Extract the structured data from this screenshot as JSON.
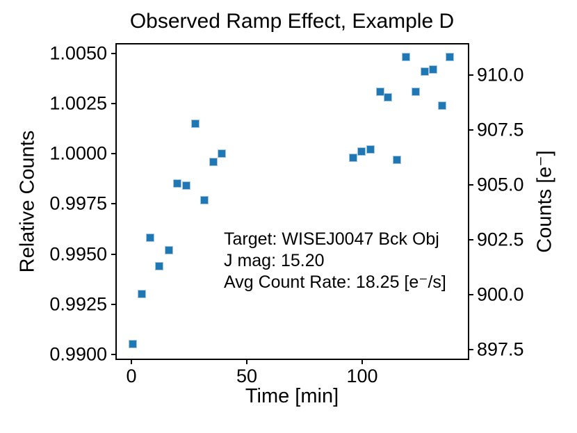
{
  "title": "Observed Ramp Effect, Example D",
  "annotation": {
    "lines": [
      "Target: WISEJ0047 Bck Obj",
      "J mag: 15.20",
      "Avg Count Rate: 18.25 [e⁻/s]"
    ]
  },
  "chart_data": {
    "type": "scatter",
    "title": "Observed Ramp Effect, Example D",
    "xlabel": "Time [min]",
    "ylabel_left": "Relative Counts",
    "ylabel_right": "Counts [e⁻]",
    "x_ticks": [
      "0",
      "50",
      "100"
    ],
    "y_ticks_left": [
      "1.0050",
      "1.0025",
      "1.0000",
      "0.9975",
      "0.9950",
      "0.9925",
      "0.9900"
    ],
    "y_ticks_right": [
      "910.0",
      "907.5",
      "905.0",
      "902.5",
      "900.0",
      "897.5"
    ],
    "xlim": [
      -6.3,
      145.8
    ],
    "ylim_left": [
      0.9898,
      1.00545
    ],
    "ylim_right": [
      897.1,
      911.4
    ],
    "grid": false,
    "legend": "none",
    "marker": "square",
    "marker_color": "#1f77b4",
    "marker_edge_color": "#a3c7e3",
    "series_name": "Relative counts vs time",
    "points_t_min_rel": [
      [
        0.6,
        0.9905
      ],
      [
        4.4,
        0.993
      ],
      [
        8.2,
        0.9958
      ],
      [
        12.0,
        0.9944
      ],
      [
        16.3,
        0.9952
      ],
      [
        19.9,
        0.9985
      ],
      [
        23.7,
        0.9984
      ],
      [
        27.6,
        1.0015
      ],
      [
        31.5,
        0.9977
      ],
      [
        35.4,
        0.9996
      ],
      [
        39.2,
        1.0
      ],
      [
        96.0,
        0.9998
      ],
      [
        99.8,
        1.0001
      ],
      [
        103.7,
        1.0002
      ],
      [
        107.7,
        1.0031
      ],
      [
        111.2,
        1.0028
      ],
      [
        115.1,
        0.9997
      ],
      [
        119.0,
        1.0048
      ],
      [
        123.1,
        1.0031
      ],
      [
        127.0,
        1.0041
      ],
      [
        130.8,
        1.0042
      ],
      [
        134.6,
        1.0024
      ],
      [
        138.0,
        1.0048
      ]
    ],
    "mean_counts_e": 906.4
  }
}
